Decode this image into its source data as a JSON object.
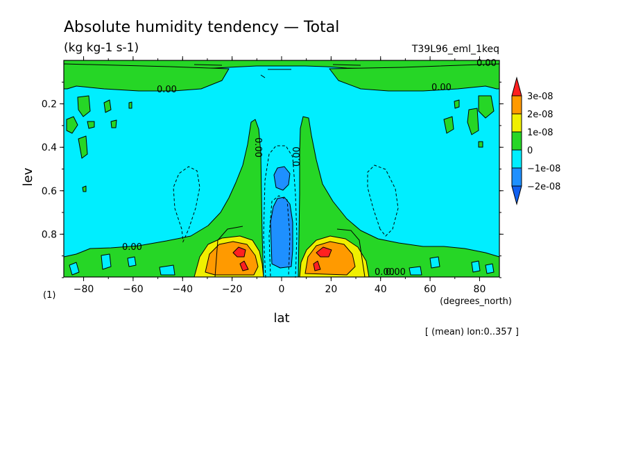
{
  "chart_data": {
    "type": "heatmap",
    "title": "Absolute humidity tendency — Total",
    "subtitle": "(kg kg-1 s-1)",
    "run_label": "T39L96_eml_1keq",
    "xlabel": "lat",
    "x_units": "(degrees_north)",
    "ylabel": "lev",
    "y_units": "(1)",
    "footnote": "[ (mean) lon:0..357 ]",
    "xlim": [
      -88,
      88
    ],
    "ylim": [
      0.0,
      0.997
    ],
    "y_reversed": true,
    "x_ticks": [
      -80,
      -60,
      -40,
      -20,
      0,
      20,
      40,
      60,
      80
    ],
    "y_ticks": [
      0.2,
      0.4,
      0.6,
      0.8
    ],
    "contour_labels": [
      "0.00",
      "0.00",
      "0.00",
      "0.00",
      "0.00",
      "0.00",
      "0.00",
      "0.00"
    ],
    "colorbar": {
      "labels": [
        "3e-08",
        "2e-08",
        "1e-08",
        "0",
        "−1e-08",
        "−2e-08"
      ],
      "colors": [
        "#ff2020",
        "#ff9a00",
        "#f0ef00",
        "#26d626",
        "#00eeff",
        "#1e90ff",
        "#1060f0"
      ]
    },
    "color_cyan": "#00eeff",
    "color_green": "#26d626",
    "color_yellow": "#f0ef00",
    "color_orange": "#ff9a00",
    "color_red": "#ff2020",
    "color_blue": "#1e90ff"
  }
}
